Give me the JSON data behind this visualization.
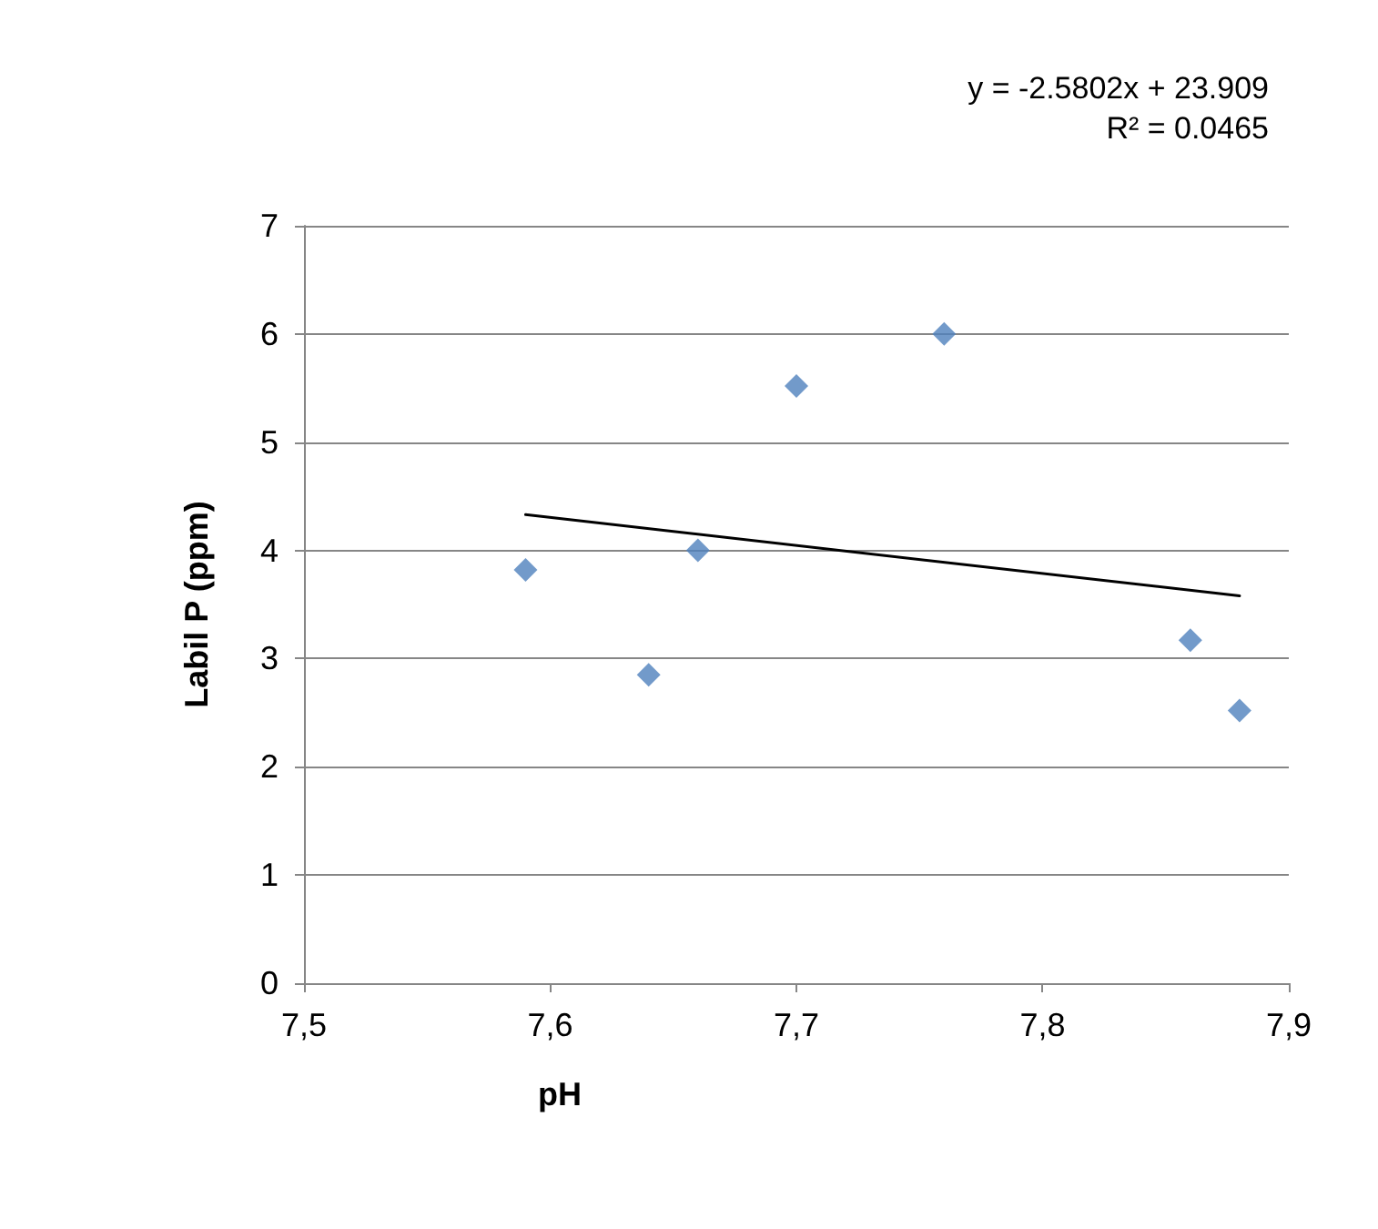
{
  "chart_data": {
    "type": "scatter",
    "xlabel": "pH",
    "ylabel": "Labil P (ppm)",
    "annotations": [
      "y = -2.5802x + 23.909",
      "R² = 0.0465"
    ],
    "series": [
      {
        "marker": "diamond",
        "color": "#4f81bd",
        "x": [
          7.59,
          7.64,
          7.66,
          7.7,
          7.76,
          7.86,
          7.88
        ],
        "values": [
          3.82,
          2.85,
          4.0,
          5.52,
          6.0,
          3.17,
          2.52
        ]
      },
      {
        "type": "line",
        "marker": "none",
        "color": "#000000",
        "x": [
          7.59,
          7.88
        ],
        "values": [
          4.33,
          3.58
        ]
      }
    ],
    "xlim": [
      7.5,
      7.9
    ],
    "xticks": [
      {
        "value": 7.5,
        "label": "7,5"
      },
      {
        "value": 7.6,
        "label": "7,6"
      },
      {
        "value": 7.7,
        "label": "7,7"
      },
      {
        "value": 7.8,
        "label": "7,8"
      },
      {
        "value": 7.9,
        "label": "7,9"
      }
    ],
    "ylim": [
      0,
      7
    ],
    "yticks": [
      0,
      1,
      2,
      3,
      4,
      5,
      6,
      7
    ],
    "grid": "y",
    "line_style": "solid"
  }
}
